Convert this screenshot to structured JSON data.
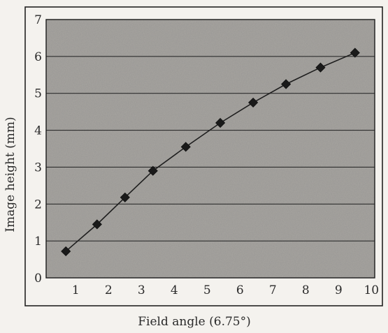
{
  "chart_data": {
    "type": "line",
    "title": "",
    "xlabel": "Field angle (6.75°)",
    "ylabel": "Image height (mm)",
    "xlim": [
      0,
      10
    ],
    "ylim": [
      0,
      7
    ],
    "x_ticks": [
      "1",
      "2",
      "3",
      "4",
      "5",
      "6",
      "7",
      "8",
      "9",
      "10"
    ],
    "y_ticks": [
      "0",
      "1",
      "2",
      "3",
      "4",
      "5",
      "6",
      "7"
    ],
    "grid": "horizontal",
    "series": [
      {
        "marker": "diamond",
        "x": [
          0.6,
          1.55,
          2.4,
          3.25,
          4.25,
          5.3,
          6.3,
          7.3,
          8.35,
          9.4
        ],
        "y": [
          0.72,
          1.45,
          2.18,
          2.9,
          3.55,
          4.2,
          4.75,
          5.25,
          5.7,
          6.1
        ]
      }
    ],
    "colors": {
      "plot_background": "#a9a6a1",
      "line": "#1e1e1e",
      "marker": "#1a1a1a",
      "grid": "#2e2e2e"
    }
  }
}
